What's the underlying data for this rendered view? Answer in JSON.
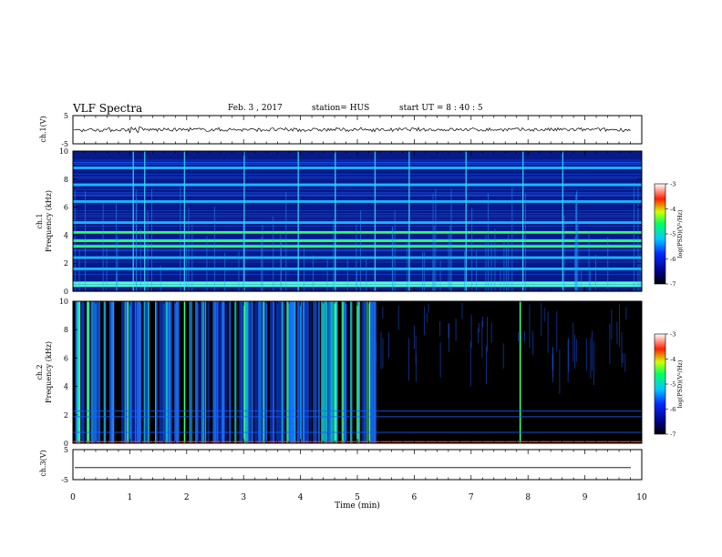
{
  "header": {
    "title": "VLF Spectra",
    "date": "Feb. 3  , 2017",
    "station": "station= HUS",
    "start": "start  UT  =   8  : 40 : 5"
  },
  "colorbar": {
    "label": "log(PSD)(V²/Hz)",
    "ticks": [
      "-3",
      "-4",
      "-5",
      "-6",
      "-7"
    ]
  },
  "chart_data": [
    {
      "type": "line",
      "panel": "ch1-waveform",
      "ylabel": "ch.1(V)",
      "ylim": [
        -5,
        5
      ],
      "yticks": [
        "5",
        "-5"
      ],
      "series": [
        {
          "values": [
            0,
            0
          ]
        }
      ],
      "note_visible": "band of noise about zero with bursts near t=1 and t=4 min"
    },
    {
      "type": "heatmap",
      "panel": "ch1-spectrogram",
      "ylabel": "ch.1 Frequency (kHz)",
      "ylim": [
        0,
        10
      ],
      "yticks": [
        "0",
        "2",
        "4",
        "6",
        "8",
        "10"
      ],
      "bright_bands_khz": [
        0.4,
        0.6,
        1.6,
        2.4,
        3.2,
        3.6,
        4.2,
        4.9,
        6.4,
        7.6,
        8.8
      ],
      "impulse_times_min": [
        1.05,
        1.25,
        1.95,
        3.0,
        3.95,
        4.6,
        5.3,
        5.9,
        6.9,
        7.9,
        8.6
      ]
    },
    {
      "type": "heatmap",
      "panel": "ch2-spectrogram",
      "ylabel": "ch.2 Frequency (kHz)",
      "ylim": [
        0,
        10
      ],
      "yticks": [
        "0",
        "2",
        "4",
        "6",
        "8",
        "10"
      ],
      "activity_end_min": 5.3,
      "bright_columns_min": [
        0.1,
        0.95,
        1.95,
        3.0,
        4.6,
        5.2,
        7.85
      ]
    },
    {
      "type": "line",
      "panel": "ch3-waveform",
      "ylabel": "ch.3(V)",
      "ylim": [
        -5,
        5
      ],
      "yticks": [
        "5",
        "-5"
      ],
      "series": [
        {
          "values": [
            -1,
            -1
          ]
        }
      ]
    }
  ],
  "xaxis": {
    "label": "Time (min)",
    "xlim": [
      0,
      10
    ],
    "ticks": [
      "0",
      "1",
      "2",
      "3",
      "4",
      "5",
      "6",
      "7",
      "8",
      "9",
      "10"
    ]
  }
}
